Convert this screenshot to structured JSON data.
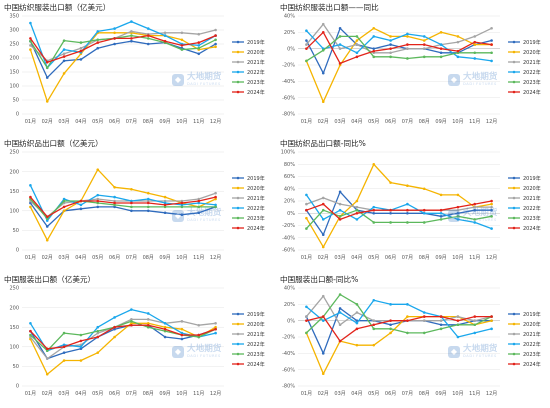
{
  "watermark": {
    "cn": "大地期货",
    "en": "DADI FUTURES"
  },
  "chart_data": [
    {
      "type": "line",
      "title": "中国纺织服装出口额（亿美元）",
      "categories": [
        "01月",
        "02月",
        "03月",
        "04月",
        "05月",
        "06月",
        "07月",
        "08月",
        "09月",
        "10月",
        "11月",
        "12月"
      ],
      "ylim": [
        0,
        350
      ],
      "yticks": [
        "0",
        "50",
        "100",
        "150",
        "200",
        "250",
        "300",
        "350"
      ],
      "ytick_values": [
        0,
        50,
        100,
        150,
        200,
        250,
        300,
        350
      ],
      "legend_position": "right",
      "series": [
        {
          "name": "2019年",
          "color": "#2f6bbd",
          "values": [
            260,
            130,
            190,
            195,
            235,
            250,
            260,
            250,
            255,
            235,
            215,
            250
          ]
        },
        {
          "name": "2020年",
          "color": "#f5b400",
          "values": [
            230,
            45,
            145,
            215,
            290,
            290,
            290,
            280,
            280,
            265,
            230,
            240
          ]
        },
        {
          "name": "2021年",
          "color": "#a5a5a5",
          "values": [
            245,
            190,
            215,
            235,
            265,
            270,
            295,
            285,
            290,
            290,
            285,
            300
          ]
        },
        {
          "name": "2022年",
          "color": "#1aa7ec",
          "values": [
            325,
            165,
            230,
            220,
            295,
            305,
            330,
            305,
            280,
            250,
            245,
            280
          ]
        },
        {
          "name": "2023年",
          "color": "#5cb85c",
          "values": [
            260,
            165,
            262,
            255,
            265,
            270,
            280,
            270,
            255,
            230,
            235,
            265
          ]
        },
        {
          "name": "2024年",
          "color": "#e2231a",
          "values": [
            270,
            185,
            205,
            225,
            255,
            270,
            270,
            280,
            260,
            245,
            255,
            280
          ]
        }
      ]
    },
    {
      "type": "line",
      "title": "中国纺织服装出口额——同比",
      "categories": [
        "01月",
        "02月",
        "03月",
        "04月",
        "05月",
        "06月",
        "07月",
        "08月",
        "09月",
        "10月",
        "11月",
        "12月"
      ],
      "ylim": [
        -80,
        40
      ],
      "yticks": [
        "-80%",
        "-60%",
        "-40%",
        "-20%",
        "0%",
        "20%",
        "40%"
      ],
      "ytick_values": [
        -80,
        -60,
        -40,
        -20,
        0,
        20,
        40
      ],
      "legend_position": "right",
      "series": [
        {
          "name": "2019年",
          "color": "#2f6bbd",
          "values": [
            10,
            -30,
            25,
            5,
            0,
            5,
            0,
            0,
            -5,
            -5,
            5,
            10
          ]
        },
        {
          "name": "2020年",
          "color": "#f5b400",
          "values": [
            -15,
            -65,
            -20,
            10,
            25,
            15,
            15,
            10,
            20,
            15,
            5,
            5
          ]
        },
        {
          "name": "2021年",
          "color": "#a5a5a5",
          "values": [
            5,
            30,
            0,
            5,
            -5,
            -5,
            0,
            0,
            5,
            8,
            15,
            25
          ]
        },
        {
          "name": "2022年",
          "color": "#1aa7ec",
          "values": [
            22,
            0,
            5,
            -5,
            15,
            10,
            18,
            15,
            5,
            -10,
            -12,
            -15
          ]
        },
        {
          "name": "2023年",
          "color": "#5cb85c",
          "values": [
            -15,
            -2,
            15,
            15,
            -10,
            -10,
            -12,
            -10,
            -10,
            -5,
            -5,
            -5
          ]
        },
        {
          "name": "2024年",
          "color": "#e2231a",
          "values": [
            0,
            20,
            -18,
            -10,
            -3,
            0,
            5,
            5,
            0,
            -3,
            8,
            5
          ]
        }
      ]
    },
    {
      "type": "line",
      "title": "中国纺织品出口额（亿美元）",
      "categories": [
        "01月",
        "02月",
        "03月",
        "04月",
        "05月",
        "06月",
        "07月",
        "08月",
        "09月",
        "10月",
        "11月",
        "12月"
      ],
      "ylim": [
        0,
        250
      ],
      "yticks": [
        "0",
        "50",
        "100",
        "150",
        "200",
        "250"
      ],
      "ytick_values": [
        0,
        50,
        100,
        150,
        200,
        250
      ],
      "legend_position": "right",
      "series": [
        {
          "name": "2019年",
          "color": "#2f6bbd",
          "values": [
            120,
            60,
            100,
            105,
            110,
            110,
            100,
            100,
            95,
            90,
            95,
            110
          ]
        },
        {
          "name": "2020年",
          "color": "#f5b400",
          "values": [
            110,
            25,
            100,
            125,
            205,
            160,
            155,
            145,
            135,
            120,
            110,
            130
          ]
        },
        {
          "name": "2021年",
          "color": "#a5a5a5",
          "values": [
            125,
            85,
            120,
            125,
            130,
            125,
            125,
            125,
            125,
            125,
            130,
            145
          ]
        },
        {
          "name": "2022年",
          "color": "#1aa7ec",
          "values": [
            165,
            75,
            130,
            115,
            140,
            135,
            125,
            130,
            120,
            115,
            120,
            115
          ]
        },
        {
          "name": "2023年",
          "color": "#5cb85c",
          "values": [
            130,
            80,
            125,
            125,
            120,
            115,
            110,
            110,
            110,
            110,
            110,
            110
          ]
        },
        {
          "name": "2024年",
          "color": "#e2231a",
          "values": [
            135,
            85,
            110,
            125,
            125,
            120,
            120,
            120,
            115,
            120,
            125,
            135
          ]
        }
      ]
    },
    {
      "type": "line",
      "title": "中国纺织品出口额-同比%",
      "categories": [
        "01月",
        "02月",
        "03月",
        "04月",
        "05月",
        "06月",
        "07月",
        "08月",
        "09月",
        "10月",
        "11月",
        "12月"
      ],
      "ylim": [
        -60,
        100
      ],
      "yticks": [
        "-60%",
        "-40%",
        "-20%",
        "0%",
        "20%",
        "40%",
        "60%",
        "80%",
        "100%"
      ],
      "ytick_values": [
        -60,
        -40,
        -20,
        0,
        20,
        40,
        60,
        80,
        100
      ],
      "legend_position": "right",
      "series": [
        {
          "name": "2019年",
          "color": "#2f6bbd",
          "values": [
            5,
            -35,
            35,
            5,
            0,
            0,
            0,
            0,
            -5,
            0,
            5,
            5
          ]
        },
        {
          "name": "2020年",
          "color": "#f5b400",
          "values": [
            -8,
            -55,
            -5,
            20,
            80,
            50,
            45,
            40,
            30,
            30,
            10,
            15
          ]
        },
        {
          "name": "2021年",
          "color": "#a5a5a5",
          "values": [
            15,
            25,
            15,
            10,
            5,
            5,
            5,
            5,
            5,
            5,
            10,
            10
          ]
        },
        {
          "name": "2022年",
          "color": "#1aa7ec",
          "values": [
            30,
            -10,
            5,
            -10,
            10,
            5,
            15,
            0,
            0,
            -10,
            -15,
            -25
          ]
        },
        {
          "name": "2023年",
          "color": "#5cb85c",
          "values": [
            -25,
            5,
            -5,
            5,
            -15,
            -15,
            -15,
            -15,
            -10,
            -5,
            -10,
            -5
          ]
        },
        {
          "name": "2024年",
          "color": "#e2231a",
          "values": [
            5,
            15,
            -10,
            0,
            5,
            5,
            5,
            5,
            5,
            10,
            15,
            20
          ]
        }
      ]
    },
    {
      "type": "line",
      "title": "中国服装出口额（亿美元）",
      "categories": [
        "01月",
        "02月",
        "03月",
        "04月",
        "05月",
        "06月",
        "07月",
        "08月",
        "09月",
        "10月",
        "11月",
        "12月"
      ],
      "ylim": [
        0,
        250
      ],
      "yticks": [
        "0",
        "50",
        "100",
        "150",
        "200",
        "250"
      ],
      "ytick_values": [
        0,
        50,
        100,
        150,
        200,
        250
      ],
      "legend_position": "right",
      "series": [
        {
          "name": "2019年",
          "color": "#2f6bbd",
          "values": [
            140,
            70,
            85,
            95,
            125,
            145,
            155,
            155,
            125,
            120,
            130,
            145
          ]
        },
        {
          "name": "2020年",
          "color": "#f5b400",
          "values": [
            120,
            30,
            65,
            65,
            85,
            125,
            160,
            160,
            150,
            145,
            125,
            150
          ]
        },
        {
          "name": "2021年",
          "color": "#a5a5a5",
          "values": [
            125,
            70,
            100,
            105,
            135,
            150,
            170,
            170,
            160,
            165,
            155,
            160
          ]
        },
        {
          "name": "2022年",
          "color": "#1aa7ec",
          "values": [
            160,
            90,
            105,
            100,
            150,
            175,
            195,
            185,
            160,
            135,
            125,
            135
          ]
        },
        {
          "name": "2023年",
          "color": "#5cb85c",
          "values": [
            130,
            90,
            135,
            130,
            140,
            150,
            165,
            150,
            140,
            130,
            125,
            145
          ]
        },
        {
          "name": "2024年",
          "color": "#e2231a",
          "values": [
            140,
            95,
            100,
            115,
            125,
            150,
            155,
            155,
            145,
            130,
            130,
            145
          ]
        }
      ]
    },
    {
      "type": "line",
      "title": "中国服装出口额-同比%",
      "categories": [
        "01月",
        "02月",
        "03月",
        "04月",
        "05月",
        "06月",
        "07月",
        "08月",
        "09月",
        "10月",
        "11月",
        "12月"
      ],
      "ylim": [
        -80,
        40
      ],
      "yticks": [
        "-80%",
        "-60%",
        "-40%",
        "-20%",
        "0%",
        "20%",
        "40%"
      ],
      "ytick_values": [
        -80,
        -60,
        -40,
        -20,
        0,
        20,
        40
      ],
      "legend_position": "right",
      "series": [
        {
          "name": "2019年",
          "color": "#2f6bbd",
          "values": [
            5,
            -40,
            15,
            0,
            0,
            -5,
            0,
            0,
            -5,
            -5,
            0,
            0
          ]
        },
        {
          "name": "2020年",
          "color": "#f5b400",
          "values": [
            -15,
            -65,
            -25,
            -30,
            -30,
            -15,
            5,
            5,
            5,
            5,
            -5,
            0
          ]
        },
        {
          "name": "2021年",
          "color": "#a5a5a5",
          "values": [
            5,
            30,
            -5,
            10,
            0,
            0,
            0,
            0,
            0,
            5,
            0,
            5
          ]
        },
        {
          "name": "2022年",
          "color": "#1aa7ec",
          "values": [
            17,
            0,
            10,
            -3,
            25,
            20,
            20,
            10,
            5,
            -20,
            -15,
            -10
          ]
        },
        {
          "name": "2023年",
          "color": "#5cb85c",
          "values": [
            -15,
            5,
            32,
            20,
            -10,
            -10,
            -15,
            -15,
            -10,
            -5,
            -5,
            5
          ]
        },
        {
          "name": "2024年",
          "color": "#e2231a",
          "values": [
            0,
            5,
            -25,
            -10,
            -5,
            0,
            0,
            5,
            5,
            0,
            5,
            5
          ]
        }
      ]
    }
  ]
}
